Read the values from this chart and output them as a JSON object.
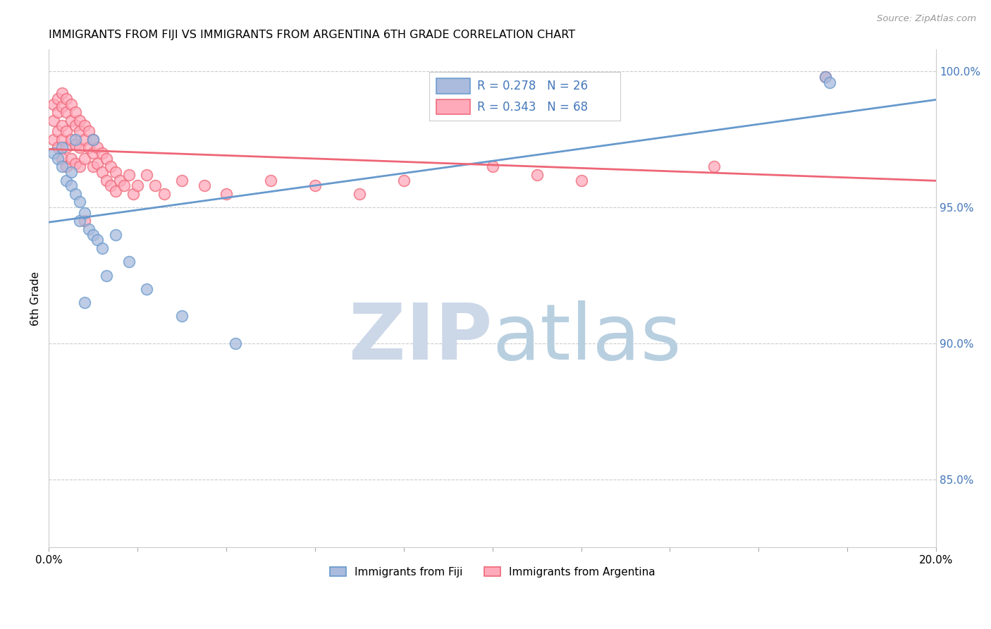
{
  "title": "IMMIGRANTS FROM FIJI VS IMMIGRANTS FROM ARGENTINA 6TH GRADE CORRELATION CHART",
  "source": "Source: ZipAtlas.com",
  "ylabel": "6th Grade",
  "xlim": [
    0.0,
    0.2
  ],
  "ylim": [
    0.825,
    1.008
  ],
  "y_ticks_right": [
    0.85,
    0.9,
    0.95,
    1.0
  ],
  "y_tick_labels_right": [
    "85.0%",
    "90.0%",
    "95.0%",
    "100.0%"
  ],
  "grid_color": "#cccccc",
  "fiji_color": "#6699cc",
  "fiji_fill": "#aabbdd",
  "argentina_color": "#ee6677",
  "argentina_fill": "#ffaabb",
  "fiji_R": 0.278,
  "fiji_N": 26,
  "argentina_R": 0.343,
  "argentina_N": 68,
  "watermark_zip_color": "#ccd8e8",
  "watermark_atlas_color": "#b8cfe0",
  "fiji_scatter_x": [
    0.001,
    0.002,
    0.003,
    0.003,
    0.004,
    0.005,
    0.005,
    0.006,
    0.006,
    0.007,
    0.007,
    0.008,
    0.009,
    0.01,
    0.01,
    0.011,
    0.012,
    0.015,
    0.018,
    0.022,
    0.03,
    0.042,
    0.175,
    0.176,
    0.013,
    0.008
  ],
  "fiji_scatter_y": [
    0.97,
    0.968,
    0.972,
    0.965,
    0.96,
    0.958,
    0.963,
    0.955,
    0.975,
    0.952,
    0.945,
    0.948,
    0.942,
    0.94,
    0.975,
    0.938,
    0.935,
    0.94,
    0.93,
    0.92,
    0.91,
    0.9,
    0.998,
    0.996,
    0.925,
    0.915
  ],
  "argentina_scatter_x": [
    0.001,
    0.001,
    0.001,
    0.002,
    0.002,
    0.002,
    0.002,
    0.003,
    0.003,
    0.003,
    0.003,
    0.003,
    0.004,
    0.004,
    0.004,
    0.004,
    0.004,
    0.005,
    0.005,
    0.005,
    0.005,
    0.006,
    0.006,
    0.006,
    0.006,
    0.007,
    0.007,
    0.007,
    0.007,
    0.008,
    0.008,
    0.008,
    0.009,
    0.009,
    0.01,
    0.01,
    0.01,
    0.011,
    0.011,
    0.012,
    0.012,
    0.013,
    0.013,
    0.014,
    0.014,
    0.015,
    0.015,
    0.016,
    0.017,
    0.018,
    0.019,
    0.02,
    0.022,
    0.024,
    0.026,
    0.03,
    0.035,
    0.04,
    0.05,
    0.06,
    0.07,
    0.08,
    0.1,
    0.11,
    0.12,
    0.15,
    0.175,
    0.008
  ],
  "argentina_scatter_y": [
    0.988,
    0.982,
    0.975,
    0.99,
    0.985,
    0.978,
    0.972,
    0.992,
    0.987,
    0.98,
    0.975,
    0.968,
    0.99,
    0.985,
    0.978,
    0.972,
    0.965,
    0.988,
    0.982,
    0.975,
    0.968,
    0.985,
    0.98,
    0.973,
    0.966,
    0.982,
    0.978,
    0.972,
    0.965,
    0.98,
    0.975,
    0.968,
    0.978,
    0.972,
    0.975,
    0.97,
    0.965,
    0.972,
    0.966,
    0.97,
    0.963,
    0.968,
    0.96,
    0.965,
    0.958,
    0.963,
    0.956,
    0.96,
    0.958,
    0.962,
    0.955,
    0.958,
    0.962,
    0.958,
    0.955,
    0.96,
    0.958,
    0.955,
    0.96,
    0.958,
    0.955,
    0.96,
    0.965,
    0.962,
    0.96,
    0.965,
    0.998,
    0.945
  ]
}
